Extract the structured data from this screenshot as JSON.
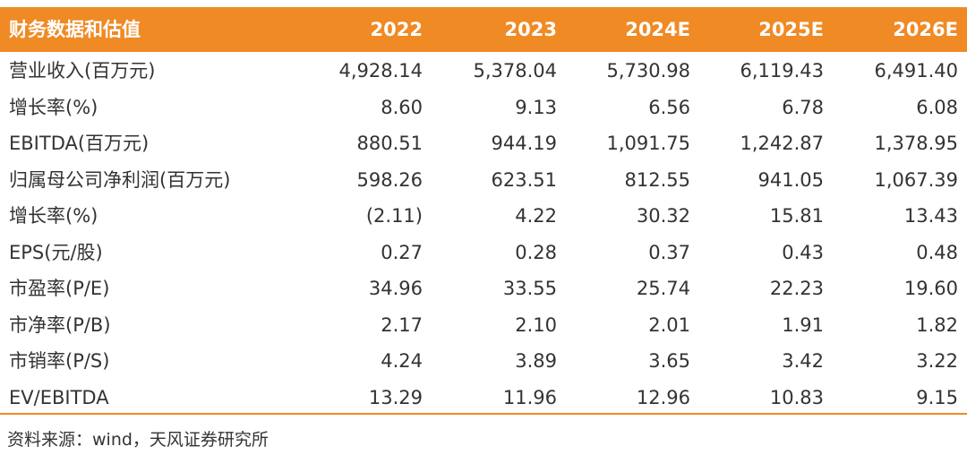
{
  "table": {
    "header": [
      "财务数据和估值",
      "2022",
      "2023",
      "2024E",
      "2025E",
      "2026E"
    ],
    "rows": [
      [
        "营业收入(百万元)",
        "4,928.14",
        "5,378.04",
        "5,730.98",
        "6,119.43",
        "6,491.40"
      ],
      [
        "增长率(%)",
        "8.60",
        "9.13",
        "6.56",
        "6.78",
        "6.08"
      ],
      [
        "EBITDA(百万元)",
        "880.51",
        "944.19",
        "1,091.75",
        "1,242.87",
        "1,378.95"
      ],
      [
        "归属母公司净利润(百万元)",
        "598.26",
        "623.51",
        "812.55",
        "941.05",
        "1,067.39"
      ],
      [
        "增长率(%)",
        "(2.11)",
        "4.22",
        "30.32",
        "15.81",
        "13.43"
      ],
      [
        "EPS(元/股)",
        "0.27",
        "0.28",
        "0.37",
        "0.43",
        "0.48"
      ],
      [
        "市盈率(P/E)",
        "34.96",
        "33.55",
        "25.74",
        "22.23",
        "19.60"
      ],
      [
        "市净率(P/B)",
        "2.17",
        "2.10",
        "2.01",
        "1.91",
        "1.82"
      ],
      [
        "市销率(P/S)",
        "4.24",
        "3.89",
        "3.65",
        "3.42",
        "3.22"
      ],
      [
        "EV/EBITDA",
        "13.29",
        "11.96",
        "12.96",
        "10.83",
        "9.15"
      ]
    ]
  },
  "source": "资料来源：wind，天风证券研究所"
}
